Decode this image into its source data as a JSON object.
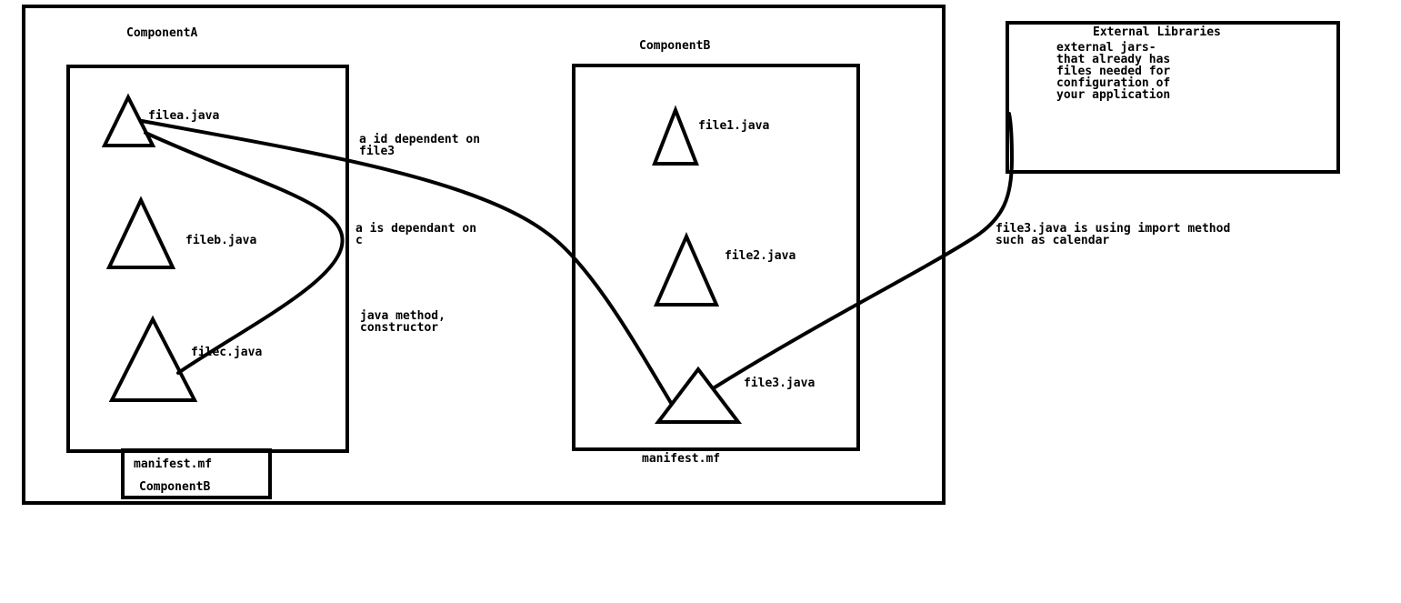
{
  "component_a": {
    "title": "ComponentA",
    "files": [
      "filea.java",
      "fileb.java",
      "filec.java"
    ],
    "manifest": {
      "name": "manifest.mf",
      "entry": "ComponentB"
    }
  },
  "component_b": {
    "title": "ComponentB",
    "files": [
      "file1.java",
      "file2.java",
      "file3.java"
    ],
    "manifest": {
      "name": "manifest.mf"
    }
  },
  "external_libraries": {
    "title": "External Libraries",
    "description_lines": [
      "external jars-",
      "that already has",
      "files needed for",
      "configuration of",
      "your application"
    ]
  },
  "annotations": {
    "a_file3": [
      "a id dependent on",
      "file3"
    ],
    "a_c": [
      "a is dependant on",
      "c"
    ],
    "java_method": [
      "java method,",
      "constructor"
    ],
    "file3_import": [
      "file3.java is using import method",
      "such as calendar"
    ]
  }
}
